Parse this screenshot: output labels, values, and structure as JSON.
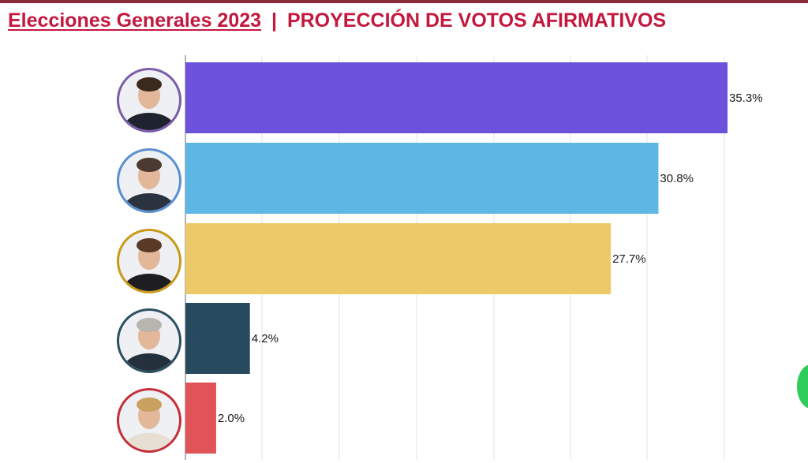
{
  "title": {
    "main": "Elecciones Generales 2023",
    "separator": "|",
    "sub": "PROYECCIÓN DE VOTOS AFIRMATIVOS"
  },
  "chart_data": {
    "type": "bar",
    "orientation": "horizontal",
    "title": "Elecciones Generales 2023 | PROYECCIÓN DE VOTOS AFIRMATIVOS",
    "values": [
      35.3,
      30.8,
      27.7,
      4.2,
      2.0
    ],
    "value_labels": [
      "35.3%",
      "30.8%",
      "27.7%",
      "4.2%",
      "2.0%"
    ],
    "bar_colors": [
      "#6c52db",
      "#5eb6e4",
      "#ecca6a",
      "#284a5e",
      "#e05358"
    ],
    "avatar_ring_colors": [
      "#7a5ca8",
      "#5a8fd0",
      "#c89a18",
      "#2d4f60",
      "#c42f3c"
    ],
    "xlim": [
      0,
      35.3
    ],
    "grid": true,
    "legend": "none"
  },
  "colors": {
    "title": "#c4173d",
    "top_rule": "#8a2b3a",
    "gridline": "#e3e3e3",
    "axis": "#9a9a9a"
  }
}
